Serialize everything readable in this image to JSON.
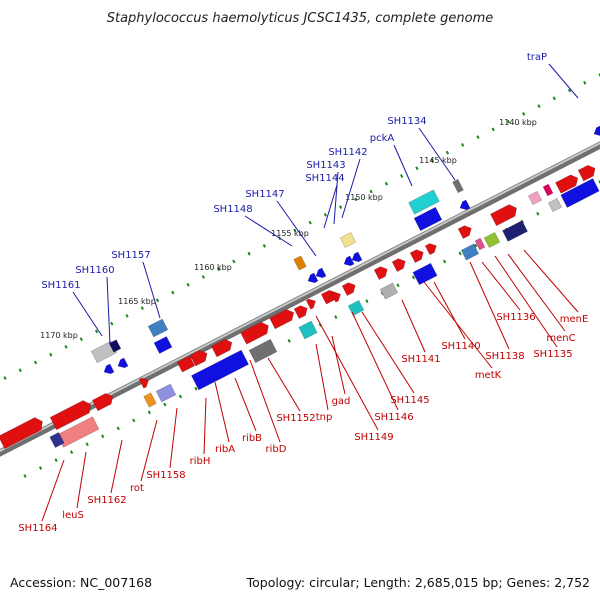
{
  "title": "Staphylococcus haemolyticus JCSC1435, complete genome",
  "footer": {
    "accession": "Accession: NC_007168",
    "summary": "Topology: circular; Length: 2,685,015 bp; Genes: 2,752"
  },
  "colors": {
    "forward_gene": "#e01010",
    "reverse_gene": "#1010e0",
    "backbone": "#888888",
    "tick": "#1a8a1a",
    "top_label": "#1a1aa8",
    "bottom_label": "#c00000"
  },
  "ticks": [
    "1140 kbp",
    "1145 kbp",
    "1150 kbp",
    "1155 kbp",
    "1160 kbp",
    "1165 kbp",
    "1170 kbp"
  ],
  "top_labels": [
    "traP",
    "SH1134",
    "pckA",
    "SH1142",
    "SH1143",
    "SH1144",
    "SH1147",
    "SH1148",
    "SH1157",
    "SH1160",
    "SH1161"
  ],
  "bottom_labels": [
    "menE",
    "menC",
    "SH1135",
    "SH1136",
    "SH1138",
    "SH1140",
    "metK",
    "SH1141",
    "SH1145",
    "SH1146",
    "SH1149",
    "gad",
    "tnp",
    "SH1152",
    "ribD",
    "ribB",
    "ribA",
    "ribH",
    "SH1158",
    "rot",
    "SH1162",
    "leuS",
    "SH1164"
  ]
}
